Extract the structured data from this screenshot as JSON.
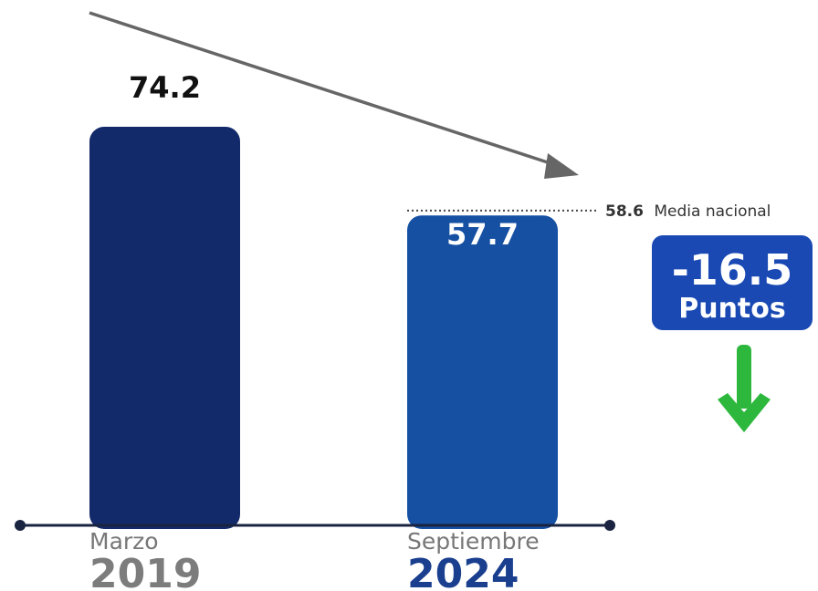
{
  "chart_data": {
    "type": "bar",
    "categories": [
      {
        "month": "Marzo",
        "year": "2019"
      },
      {
        "month": "Septiembre",
        "year": "2024"
      }
    ],
    "values": [
      74.2,
      57.7
    ],
    "value_labels": [
      "74.2",
      "57.7"
    ],
    "ylim": [
      0,
      90
    ],
    "grid": false,
    "reference_line": {
      "value": 58.6,
      "value_label": "58.6",
      "label": "Media nacional"
    },
    "change": {
      "value": "-16.5",
      "unit": "Puntos"
    }
  },
  "colors": {
    "bar_2019": "#132a6a",
    "bar_2024": "#1550a2",
    "axis": "#1a2440",
    "trend_arrow": "#666666",
    "badge": "#1a49b4",
    "down_arrow": "#2db83d",
    "year_2019": "#7c7c7c",
    "year_2024": "#1a3f8f",
    "month_text": "#777777"
  },
  "icons": {
    "trend": "diagonal-down-arrow-icon",
    "decrease": "arrow-down-icon"
  }
}
